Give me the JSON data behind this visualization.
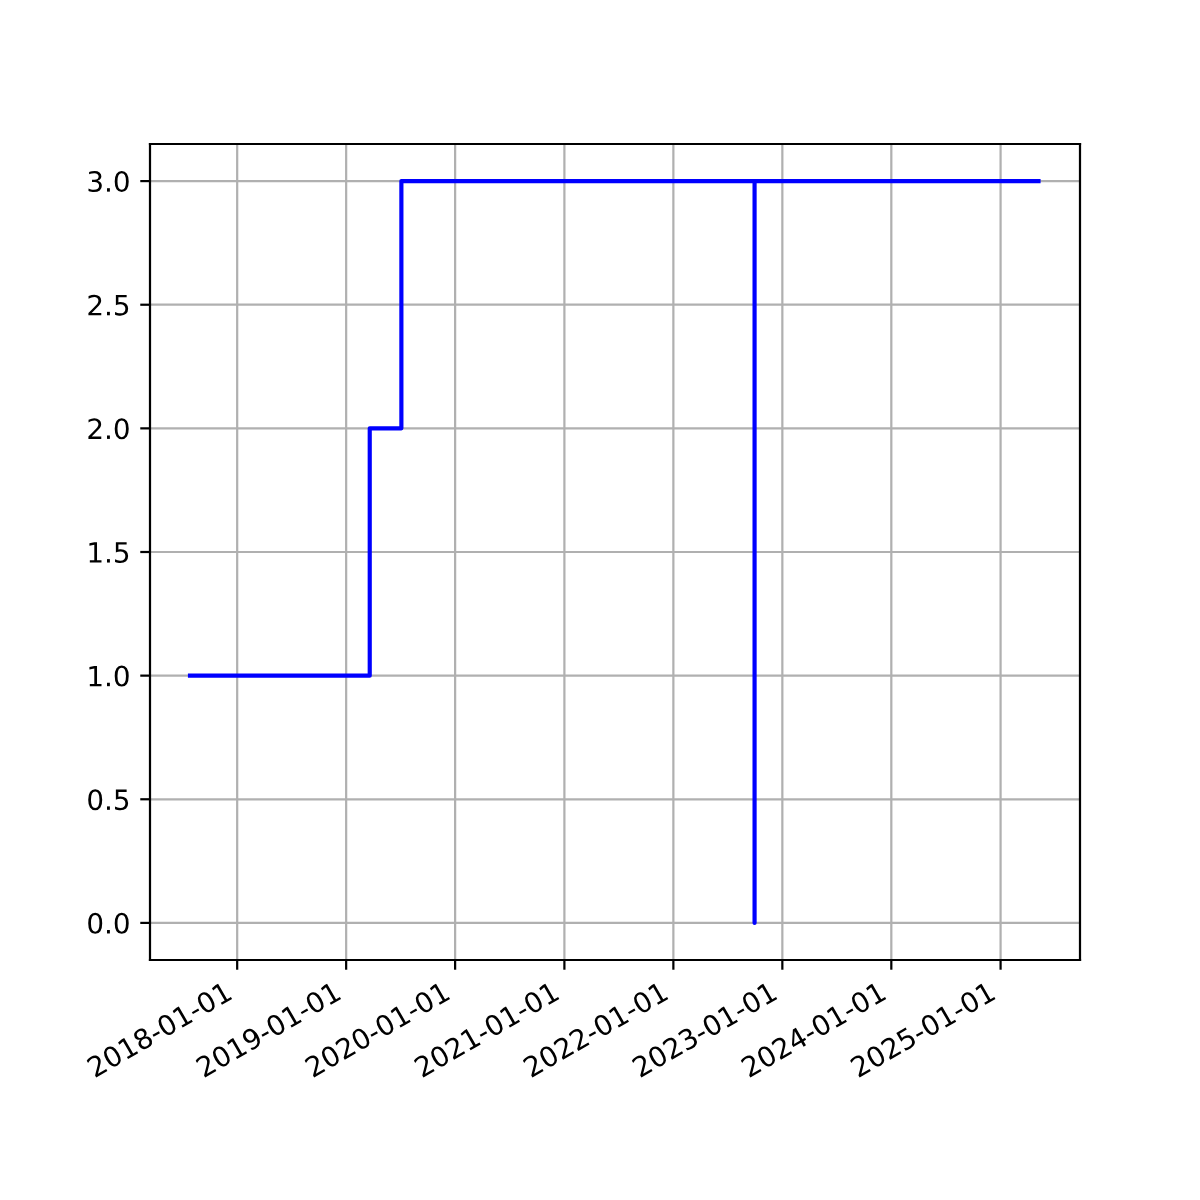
{
  "chart_data": {
    "type": "step",
    "x": [
      "2017-07-27",
      "2019-03-21",
      "2019-07-05",
      "2022-09-30",
      "2022-09-30",
      "2025-05-08"
    ],
    "series": [
      {
        "color": "#0000ff",
        "values": [
          1,
          2,
          3,
          0,
          3,
          3
        ]
      }
    ],
    "xlim": [
      "2017-03-15",
      "2025-09-24"
    ],
    "xticks": [
      "2018-01-01",
      "2019-01-01",
      "2020-01-01",
      "2021-01-01",
      "2022-01-01",
      "2023-01-01",
      "2024-01-01",
      "2025-01-01"
    ],
    "ylim": [
      -0.15,
      3.15
    ],
    "yticks": [
      {
        "value": 0,
        "label": "0.0"
      },
      {
        "value": 0.5,
        "label": "0.5"
      },
      {
        "value": 1,
        "label": "1.0"
      },
      {
        "value": 1.5,
        "label": "1.5"
      },
      {
        "value": 2,
        "label": "2.0"
      },
      {
        "value": 2.5,
        "label": "2.5"
      },
      {
        "value": 3,
        "label": "3.0"
      }
    ],
    "grid": true
  }
}
